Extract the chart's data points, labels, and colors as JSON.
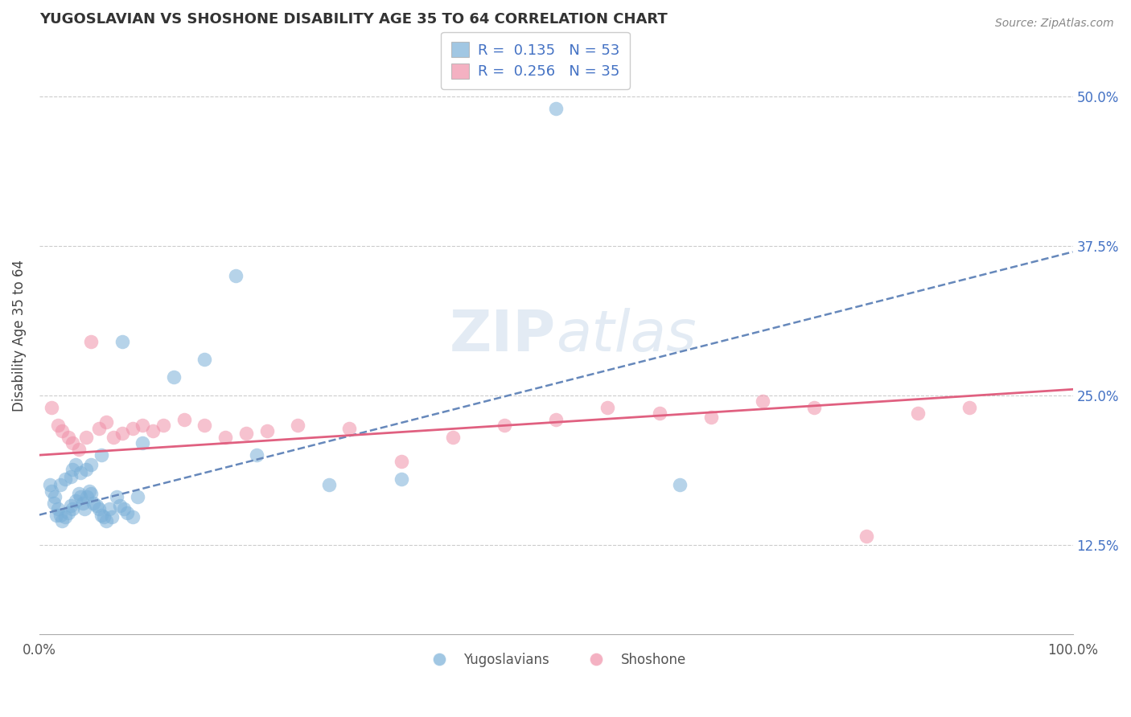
{
  "title": "YUGOSLAVIAN VS SHOSHONE DISABILITY AGE 35 TO 64 CORRELATION CHART",
  "source": "Source: ZipAtlas.com",
  "ylabel": "Disability Age 35 to 64",
  "yticks": [
    "12.5%",
    "25.0%",
    "37.5%",
    "50.0%"
  ],
  "ytick_vals": [
    0.125,
    0.25,
    0.375,
    0.5
  ],
  "xlim": [
    0.0,
    1.0
  ],
  "ylim": [
    0.05,
    0.55
  ],
  "yugoslavian_color": "#7ab0d8",
  "shoshone_color": "#f090a8",
  "trend_yugo_color": "#6688bb",
  "trend_shosh_color": "#e06080",
  "background_color": "#ffffff",
  "watermark": "ZIPatlas",
  "yugo_x": [
    0.014,
    0.016,
    0.018,
    0.02,
    0.022,
    0.025,
    0.028,
    0.03,
    0.032,
    0.035,
    0.038,
    0.04,
    0.042,
    0.044,
    0.046,
    0.048,
    0.05,
    0.052,
    0.055,
    0.058,
    0.06,
    0.062,
    0.065,
    0.068,
    0.07,
    0.075,
    0.078,
    0.082,
    0.085,
    0.09,
    0.095,
    0.01,
    0.012,
    0.015,
    0.02,
    0.025,
    0.03,
    0.032,
    0.035,
    0.04,
    0.045,
    0.05,
    0.06,
    0.08,
    0.1,
    0.13,
    0.16,
    0.19,
    0.21,
    0.28,
    0.35,
    0.5,
    0.62
  ],
  "yugo_y": [
    0.16,
    0.15,
    0.155,
    0.15,
    0.145,
    0.148,
    0.152,
    0.158,
    0.155,
    0.162,
    0.168,
    0.165,
    0.16,
    0.155,
    0.165,
    0.17,
    0.168,
    0.16,
    0.158,
    0.155,
    0.15,
    0.148,
    0.145,
    0.155,
    0.148,
    0.165,
    0.158,
    0.155,
    0.152,
    0.148,
    0.165,
    0.175,
    0.17,
    0.165,
    0.175,
    0.18,
    0.182,
    0.188,
    0.192,
    0.185,
    0.188,
    0.192,
    0.2,
    0.295,
    0.21,
    0.265,
    0.28,
    0.35,
    0.2,
    0.175,
    0.18,
    0.49,
    0.175
  ],
  "shosh_x": [
    0.012,
    0.018,
    0.022,
    0.028,
    0.032,
    0.038,
    0.045,
    0.05,
    0.058,
    0.065,
    0.072,
    0.08,
    0.09,
    0.1,
    0.11,
    0.12,
    0.14,
    0.16,
    0.18,
    0.2,
    0.22,
    0.25,
    0.3,
    0.35,
    0.4,
    0.45,
    0.5,
    0.55,
    0.6,
    0.65,
    0.7,
    0.75,
    0.8,
    0.85,
    0.9
  ],
  "shosh_y": [
    0.24,
    0.225,
    0.22,
    0.215,
    0.21,
    0.205,
    0.215,
    0.295,
    0.222,
    0.228,
    0.215,
    0.218,
    0.222,
    0.225,
    0.22,
    0.225,
    0.23,
    0.225,
    0.215,
    0.218,
    0.22,
    0.225,
    0.222,
    0.195,
    0.215,
    0.225,
    0.23,
    0.24,
    0.235,
    0.232,
    0.245,
    0.24,
    0.132,
    0.235,
    0.24
  ]
}
